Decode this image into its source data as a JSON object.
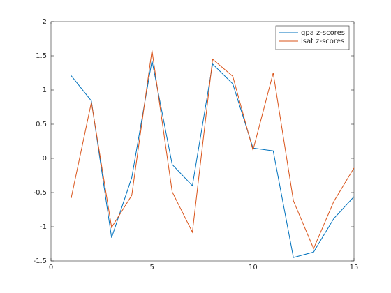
{
  "chart_data": {
    "type": "line",
    "x": [
      1,
      2,
      3,
      4,
      5,
      6,
      7,
      8,
      9,
      10,
      11,
      12,
      13,
      14,
      15
    ],
    "series": [
      {
        "name": "gpa z-scores",
        "color": "#0072bd",
        "values": [
          1.21,
          0.84,
          -1.16,
          -0.28,
          1.43,
          -0.09,
          -0.4,
          1.38,
          1.09,
          0.15,
          0.11,
          -1.45,
          -1.37,
          -0.88,
          -0.56
        ]
      },
      {
        "name": "lsat z-scores",
        "color": "#d95319",
        "values": [
          -0.58,
          0.82,
          -1.01,
          -0.54,
          1.58,
          -0.49,
          -1.08,
          1.45,
          1.2,
          0.12,
          1.25,
          -0.62,
          -1.32,
          -0.63,
          -0.14
        ]
      }
    ],
    "xlim": [
      0,
      15
    ],
    "xticks": [
      0,
      5,
      10,
      15
    ],
    "ylim": [
      -1.5,
      2
    ],
    "yticks": [
      -1.5,
      -1,
      -0.5,
      0,
      0.5,
      1,
      1.5,
      2
    ],
    "legend": "top-right"
  }
}
